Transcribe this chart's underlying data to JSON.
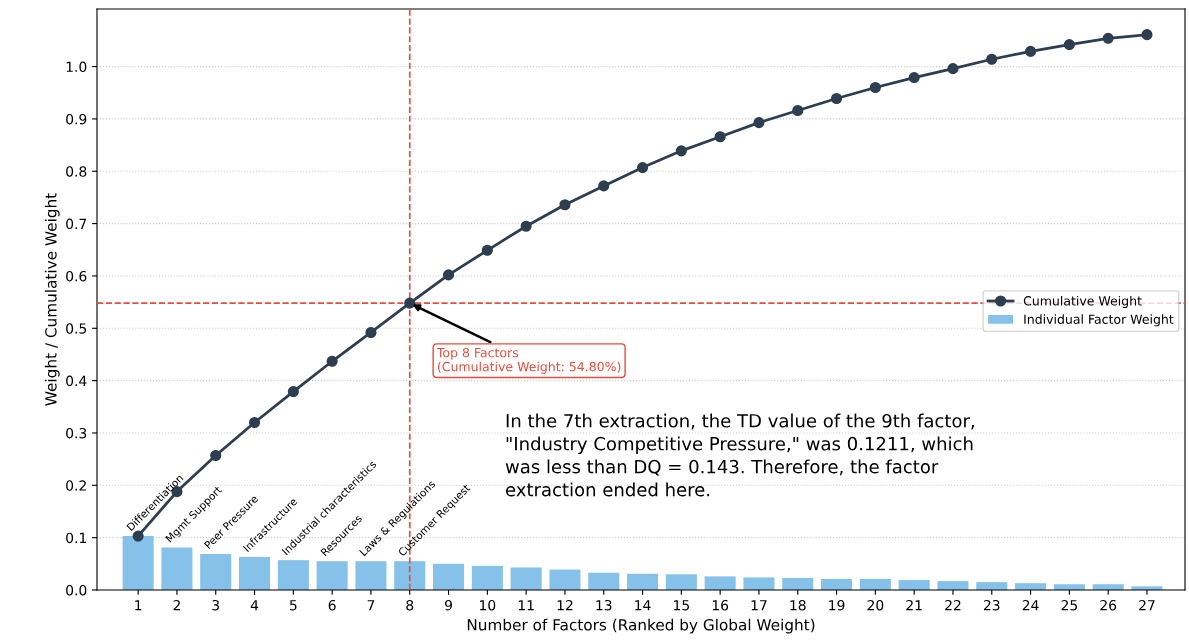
{
  "chart_data": {
    "type": "bar",
    "xlabel": "Number of Factors (Ranked by Global Weight)",
    "ylabel": "Weight / Cumulative Weight",
    "categories": [
      "1",
      "2",
      "3",
      "4",
      "5",
      "6",
      "7",
      "8",
      "9",
      "10",
      "11",
      "12",
      "13",
      "14",
      "15",
      "16",
      "17",
      "18",
      "19",
      "20",
      "21",
      "22",
      "23",
      "24",
      "25",
      "26",
      "27"
    ],
    "series": [
      {
        "name": "Individual Factor Weight",
        "color": "#85c1e9",
        "values": [
          0.103,
          0.081,
          0.069,
          0.063,
          0.057,
          0.055,
          0.055,
          0.055,
          0.05,
          0.046,
          0.043,
          0.039,
          0.033,
          0.031,
          0.03,
          0.026,
          0.024,
          0.023,
          0.021,
          0.021,
          0.019,
          0.017,
          0.015,
          0.013,
          0.011,
          0.011,
          0.007
        ]
      },
      {
        "name": "Cumulative Weight",
        "type": "line",
        "color": "#2c3e50",
        "marker": "circle",
        "line_style": "solid",
        "values": [
          0.103,
          0.188,
          0.257,
          0.32,
          0.379,
          0.437,
          0.492,
          0.548,
          0.602,
          0.649,
          0.695,
          0.736,
          0.772,
          0.807,
          0.839,
          0.866,
          0.893,
          0.916,
          0.939,
          0.96,
          0.979,
          0.996,
          1.014,
          1.029,
          1.042,
          1.054,
          1.061
        ]
      }
    ],
    "ylim": [
      0,
      1.11
    ],
    "yticks": [
      {
        "value": 0,
        "label": "0.0"
      },
      0.1,
      0.2,
      0.3,
      0.4,
      0.5,
      0.6,
      0.7,
      0.8,
      0.9,
      {
        "value": 1,
        "label": "1.0"
      }
    ],
    "grid": "y",
    "legend": "right",
    "ref_lines": [
      {
        "axis": "x",
        "value": "8",
        "color": "#e74c3c",
        "line_style": "dashed"
      },
      {
        "axis": "y",
        "value": 0.548,
        "color": "#e74c3c",
        "line_style": "dashed"
      }
    ],
    "annotations": [
      {
        "text": "Top 8 Factors\n(Cumulative Weight: 54.80%)",
        "x": "8",
        "y": 0.548
      },
      {
        "text": "Differentiation",
        "x": "1",
        "y": 0.103
      },
      {
        "text": "Mgmt Support",
        "x": "2",
        "y": 0.081
      },
      {
        "text": "Peer Pressure",
        "x": "3",
        "y": 0.069
      },
      {
        "text": "Infrastructure",
        "x": "4",
        "y": 0.063
      },
      {
        "text": "Industrial characteristics",
        "x": "5",
        "y": 0.057
      },
      {
        "text": "Resources",
        "x": "6",
        "y": 0.055
      },
      {
        "text": "Laws & Regulations",
        "x": "7",
        "y": 0.055
      },
      {
        "text": "Customer Request",
        "x": "8",
        "y": 0.055
      },
      "In the 7th extraction, the TD value of the 9th factor,\n\"Industry Competitive Pressure,\" was 0.1211, which\nwas less than DQ = 0.143. Therefore, the factor\nextraction ended here."
    ]
  }
}
